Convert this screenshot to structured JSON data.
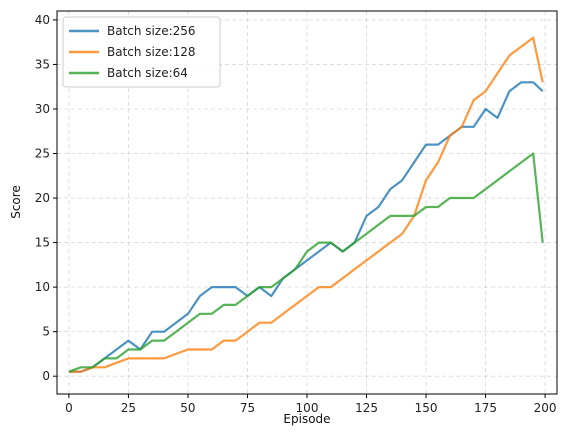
{
  "chart_data": {
    "type": "line",
    "xlabel": "Episode",
    "ylabel": "Score",
    "xlim": [
      -5,
      205
    ],
    "ylim": [
      -2,
      41
    ],
    "xticks": [
      0,
      25,
      50,
      75,
      100,
      125,
      150,
      175,
      200
    ],
    "yticks": [
      0,
      5,
      10,
      15,
      20,
      25,
      30,
      35,
      40
    ],
    "grid": true,
    "legend_position": "top-left",
    "series": [
      {
        "name": "Batch size:256",
        "color": "#1f77b4",
        "x": [
          0,
          5,
          10,
          15,
          20,
          25,
          30,
          35,
          40,
          45,
          50,
          55,
          60,
          65,
          70,
          75,
          80,
          85,
          90,
          95,
          100,
          105,
          110,
          115,
          120,
          125,
          130,
          135,
          140,
          145,
          150,
          155,
          160,
          165,
          170,
          175,
          180,
          185,
          190,
          195,
          199
        ],
        "y": [
          0.5,
          0.5,
          1,
          2,
          3,
          4,
          3,
          5,
          5,
          6,
          7,
          9,
          10,
          10,
          10,
          9,
          10,
          9,
          11,
          12,
          13,
          14,
          15,
          14,
          15,
          18,
          19,
          21,
          22,
          24,
          26,
          26,
          27,
          28,
          28,
          30,
          29,
          32,
          33,
          33,
          32
        ]
      },
      {
        "name": "Batch size:128",
        "color": "#ff7f0e",
        "x": [
          0,
          5,
          10,
          15,
          20,
          25,
          30,
          35,
          40,
          45,
          50,
          55,
          60,
          65,
          70,
          75,
          80,
          85,
          90,
          95,
          100,
          105,
          110,
          115,
          120,
          125,
          130,
          135,
          140,
          145,
          150,
          155,
          160,
          165,
          170,
          175,
          180,
          185,
          190,
          195,
          199
        ],
        "y": [
          0.5,
          0.5,
          1,
          1,
          1.5,
          2,
          2,
          2,
          2,
          2.5,
          3,
          3,
          3,
          4,
          4,
          5,
          6,
          6,
          7,
          8,
          9,
          10,
          10,
          11,
          12,
          13,
          14,
          15,
          16,
          18,
          22,
          24,
          27,
          28,
          31,
          32,
          34,
          36,
          37,
          38,
          33
        ]
      },
      {
        "name": "Batch size:64",
        "color": "#2ca02c",
        "x": [
          0,
          5,
          10,
          15,
          20,
          25,
          30,
          35,
          40,
          45,
          50,
          55,
          60,
          65,
          70,
          75,
          80,
          85,
          90,
          95,
          100,
          105,
          110,
          115,
          120,
          125,
          130,
          135,
          140,
          145,
          150,
          155,
          160,
          165,
          170,
          175,
          180,
          185,
          190,
          195,
          199
        ],
        "y": [
          0.5,
          1,
          1,
          2,
          2,
          3,
          3,
          4,
          4,
          5,
          6,
          7,
          7,
          8,
          8,
          9,
          10,
          10,
          11,
          12,
          14,
          15,
          15,
          14,
          15,
          16,
          17,
          18,
          18,
          18,
          19,
          19,
          20,
          20,
          20,
          21,
          22,
          23,
          24,
          25,
          15
        ]
      }
    ]
  }
}
